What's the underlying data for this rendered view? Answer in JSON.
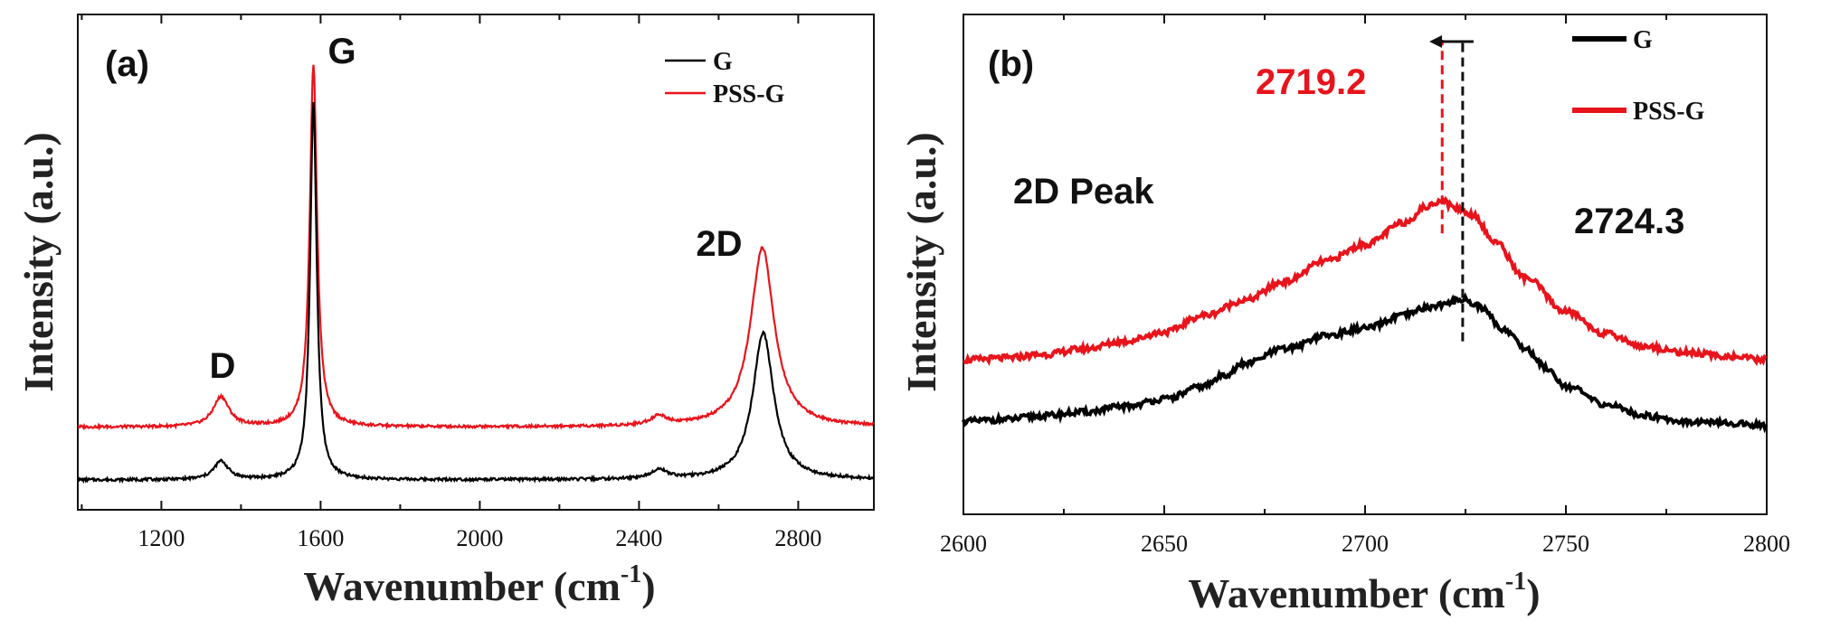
{
  "colors": {
    "G": "#000000",
    "PSS-G": "#e8141c",
    "axis": "#111111",
    "marker_red": "#e8141c",
    "marker_black": "#111111"
  },
  "chart_data": [
    {
      "type": "line",
      "panel_label": "(a)",
      "xlabel": "Wavenumber (cm",
      "xlabel_sup": "-1",
      "xlabel_close": ")",
      "ylabel": "Intensity (a.u.)",
      "xlim": [
        990,
        2990
      ],
      "ylim": [
        0,
        1.0
      ],
      "xticks": [
        1200,
        1600,
        2000,
        2400,
        2800
      ],
      "legend": {
        "position": "top-right",
        "entries": [
          "G",
          "PSS-G"
        ]
      },
      "annotations": [
        {
          "text": "D",
          "x": 1350,
          "y": 0.26
        },
        {
          "text": "G",
          "x": 1610,
          "y": 0.93
        },
        {
          "text": "2D",
          "x": 2660,
          "y": 0.52
        }
      ],
      "series": [
        {
          "name": "G",
          "color": "#000000",
          "baseline": 0.065,
          "peaks": [
            {
              "center": 1350,
              "width": 22,
              "height": 0.04
            },
            {
              "center": 1582,
              "width": 10,
              "height": 0.82
            },
            {
              "center": 2450,
              "width": 25,
              "height": 0.02
            },
            {
              "center": 2712,
              "width": 32,
              "height": 0.32
            }
          ]
        },
        {
          "name": "PSS-G",
          "color": "#e8141c",
          "baseline": 0.18,
          "peaks": [
            {
              "center": 1350,
              "width": 24,
              "height": 0.065
            },
            {
              "center": 1582,
              "width": 11,
              "height": 0.79
            },
            {
              "center": 2450,
              "width": 25,
              "height": 0.02
            },
            {
              "center": 2710,
              "width": 36,
              "height": 0.39
            }
          ]
        }
      ]
    },
    {
      "type": "line",
      "panel_label": "(b)",
      "xlabel": "Wavenumber (cm",
      "xlabel_sup": "-1",
      "xlabel_close": ")",
      "ylabel": "Intensity (a.u.)",
      "xlim": [
        2600,
        2800
      ],
      "ylim": [
        0,
        1.0
      ],
      "xticks": [
        2600,
        2650,
        2700,
        2750,
        2800
      ],
      "legend": {
        "position": "top-right",
        "entries": [
          "G",
          "PSS-G"
        ]
      },
      "annotations": [
        {
          "text": "2D Peak",
          "x": 2632,
          "y": 0.7,
          "color": "#111111"
        },
        {
          "text": "2719.2",
          "x": 2690,
          "y": 0.92,
          "color": "#e8141c"
        },
        {
          "text": "2724.3",
          "x": 2741,
          "y": 0.6,
          "color": "#111111"
        }
      ],
      "markers": [
        {
          "x": 2719.2,
          "color": "#e8141c",
          "y_from": 0.65,
          "y_to": 1.0
        },
        {
          "x": 2724.3,
          "color": "#111111",
          "y_from": 0.36,
          "y_to": 1.0
        }
      ],
      "shift_arrow": {
        "from_x": 2727,
        "to_x": 2716,
        "y": 1.0
      },
      "series": [
        {
          "name": "G",
          "color": "#000000",
          "points": [
            [
              2600,
              0.145
            ],
            [
              2610,
              0.15
            ],
            [
              2620,
              0.16
            ],
            [
              2630,
              0.17
            ],
            [
              2640,
              0.185
            ],
            [
              2650,
              0.205
            ],
            [
              2660,
              0.24
            ],
            [
              2665,
              0.27
            ],
            [
              2670,
              0.3
            ],
            [
              2680,
              0.34
            ],
            [
              2690,
              0.375
            ],
            [
              2700,
              0.395
            ],
            [
              2710,
              0.43
            ],
            [
              2715,
              0.45
            ],
            [
              2720,
              0.46
            ],
            [
              2724.3,
              0.475
            ],
            [
              2728,
              0.455
            ],
            [
              2735,
              0.39
            ],
            [
              2740,
              0.34
            ],
            [
              2745,
              0.29
            ],
            [
              2750,
              0.24
            ],
            [
              2760,
              0.19
            ],
            [
              2770,
              0.16
            ],
            [
              2780,
              0.145
            ],
            [
              2790,
              0.14
            ],
            [
              2800,
              0.135
            ]
          ]
        },
        {
          "name": "PSS-G",
          "color": "#e8141c",
          "points": [
            [
              2600,
              0.31
            ],
            [
              2610,
              0.315
            ],
            [
              2620,
              0.325
            ],
            [
              2630,
              0.34
            ],
            [
              2640,
              0.36
            ],
            [
              2650,
              0.385
            ],
            [
              2660,
              0.43
            ],
            [
              2670,
              0.47
            ],
            [
              2680,
              0.52
            ],
            [
              2690,
              0.575
            ],
            [
              2700,
              0.62
            ],
            [
              2710,
              0.68
            ],
            [
              2715,
              0.72
            ],
            [
              2719.2,
              0.74
            ],
            [
              2722,
              0.72
            ],
            [
              2727,
              0.7
            ],
            [
              2732,
              0.63
            ],
            [
              2740,
              0.53
            ],
            [
              2750,
              0.44
            ],
            [
              2760,
              0.38
            ],
            [
              2770,
              0.345
            ],
            [
              2780,
              0.33
            ],
            [
              2790,
              0.32
            ],
            [
              2800,
              0.31
            ]
          ]
        }
      ]
    }
  ]
}
